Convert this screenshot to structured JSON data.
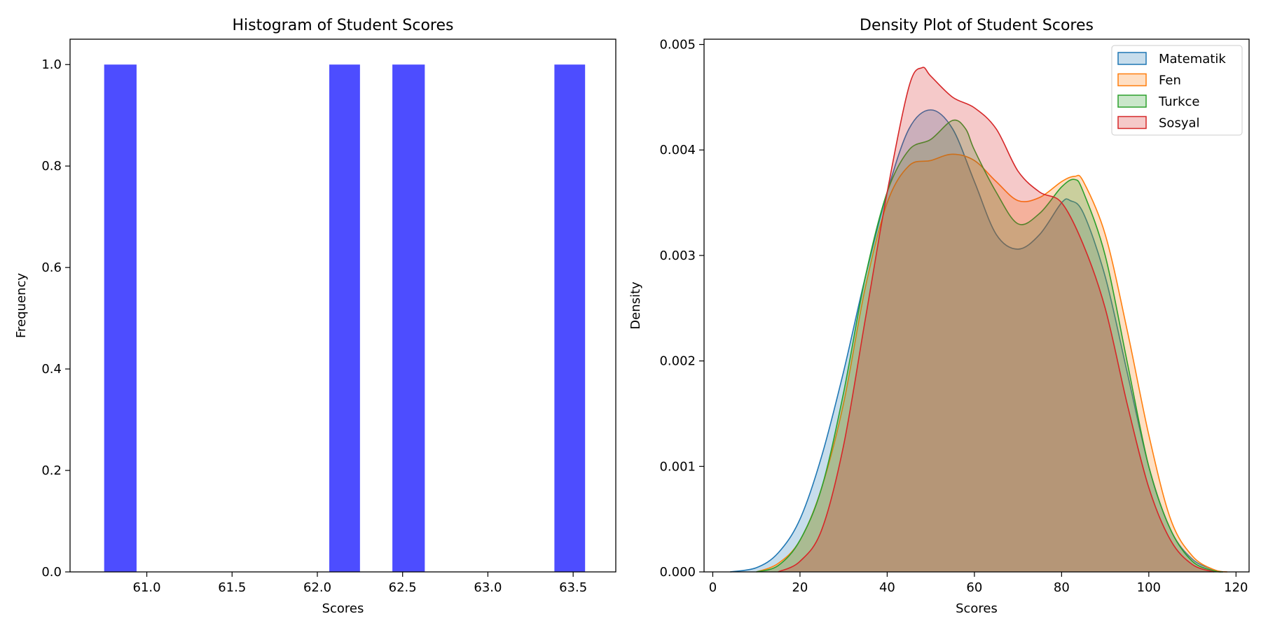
{
  "chart_data": [
    {
      "type": "bar",
      "title": "Histogram of Student Scores",
      "xlabel": "Scores",
      "ylabel": "Frequency",
      "xlim": [
        60.55,
        63.75
      ],
      "ylim": [
        0,
        1.05
      ],
      "xticks": [
        "61.0",
        "61.5",
        "62.0",
        "62.5",
        "63.0",
        "63.5"
      ],
      "yticks": [
        "0.0",
        "0.2",
        "0.4",
        "0.6",
        "0.8",
        "1.0"
      ],
      "bar_color": "#4d4dff",
      "bins": [
        {
          "x0": 60.75,
          "x1": 60.94,
          "value": 1
        },
        {
          "x0": 62.07,
          "x1": 62.25,
          "value": 1
        },
        {
          "x0": 62.44,
          "x1": 62.63,
          "value": 1
        },
        {
          "x0": 63.39,
          "x1": 63.57,
          "value": 1
        }
      ]
    },
    {
      "type": "area",
      "title": "Density Plot of Student Scores",
      "xlabel": "Scores",
      "ylabel": "Density",
      "xlim": [
        -2,
        123
      ],
      "ylim": [
        0,
        0.00505
      ],
      "xticks": [
        "0",
        "20",
        "40",
        "60",
        "80",
        "100",
        "120"
      ],
      "yticks": [
        "0.000",
        "0.001",
        "0.002",
        "0.003",
        "0.004",
        "0.005"
      ],
      "legend_position": "top-right",
      "series": [
        {
          "name": "Matematik",
          "color": "#1f77b4",
          "points": [
            [
              4,
              0
            ],
            [
              10,
              4e-05
            ],
            [
              15,
              0.00018
            ],
            [
              20,
              0.0005
            ],
            [
              25,
              0.0011
            ],
            [
              30,
              0.0019
            ],
            [
              35,
              0.0028
            ],
            [
              40,
              0.0036
            ],
            [
              45,
              0.0042
            ],
            [
              50,
              0.00438
            ],
            [
              55,
              0.0042
            ],
            [
              60,
              0.0037
            ],
            [
              65,
              0.0032
            ],
            [
              70,
              0.00306
            ],
            [
              75,
              0.0032
            ],
            [
              80,
              0.0035
            ],
            [
              82,
              0.00352
            ],
            [
              85,
              0.0034
            ],
            [
              90,
              0.0028
            ],
            [
              95,
              0.0019
            ],
            [
              100,
              0.001
            ],
            [
              105,
              0.0004
            ],
            [
              110,
              0.00012
            ],
            [
              115,
              2e-05
            ],
            [
              117,
              0
            ]
          ]
        },
        {
          "name": "Fen",
          "color": "#ff7f0e",
          "points": [
            [
              10,
              0
            ],
            [
              15,
              8e-05
            ],
            [
              20,
              0.0003
            ],
            [
              25,
              0.0008
            ],
            [
              30,
              0.0016
            ],
            [
              35,
              0.0027
            ],
            [
              40,
              0.0035
            ],
            [
              45,
              0.00385
            ],
            [
              50,
              0.0039
            ],
            [
              55,
              0.00396
            ],
            [
              60,
              0.0039
            ],
            [
              65,
              0.0037
            ],
            [
              70,
              0.00352
            ],
            [
              75,
              0.00355
            ],
            [
              80,
              0.0037
            ],
            [
              83,
              0.00375
            ],
            [
              85,
              0.0037
            ],
            [
              90,
              0.0032
            ],
            [
              95,
              0.0023
            ],
            [
              100,
              0.0013
            ],
            [
              105,
              0.0005
            ],
            [
              110,
              0.00015
            ],
            [
              115,
              2e-05
            ],
            [
              118,
              0
            ]
          ]
        },
        {
          "name": "Turkce",
          "color": "#2ca02c",
          "points": [
            [
              10,
              0
            ],
            [
              15,
              6e-05
            ],
            [
              20,
              0.0003
            ],
            [
              25,
              0.0008
            ],
            [
              30,
              0.0017
            ],
            [
              35,
              0.0028
            ],
            [
              40,
              0.0036
            ],
            [
              45,
              0.004
            ],
            [
              50,
              0.0041
            ],
            [
              55,
              0.00428
            ],
            [
              58,
              0.0042
            ],
            [
              60,
              0.004
            ],
            [
              65,
              0.0036
            ],
            [
              70,
              0.0033
            ],
            [
              75,
              0.0034
            ],
            [
              80,
              0.00365
            ],
            [
              83,
              0.00372
            ],
            [
              85,
              0.0036
            ],
            [
              90,
              0.003
            ],
            [
              95,
              0.002
            ],
            [
              100,
              0.001
            ],
            [
              105,
              0.0004
            ],
            [
              110,
              0.0001
            ],
            [
              115,
              1e-05
            ],
            [
              117,
              0
            ]
          ]
        },
        {
          "name": "Sosyal",
          "color": "#d62728",
          "points": [
            [
              15,
              0
            ],
            [
              20,
              0.0001
            ],
            [
              25,
              0.0004
            ],
            [
              30,
              0.0012
            ],
            [
              35,
              0.0024
            ],
            [
              40,
              0.0036
            ],
            [
              45,
              0.0046
            ],
            [
              48,
              0.00478
            ],
            [
              50,
              0.0047
            ],
            [
              55,
              0.0045
            ],
            [
              60,
              0.0044
            ],
            [
              65,
              0.0042
            ],
            [
              70,
              0.0038
            ],
            [
              75,
              0.0036
            ],
            [
              80,
              0.0035
            ],
            [
              85,
              0.0031
            ],
            [
              90,
              0.0025
            ],
            [
              95,
              0.0016
            ],
            [
              100,
              0.0008
            ],
            [
              105,
              0.0003
            ],
            [
              110,
              7e-05
            ],
            [
              115,
              0
            ]
          ]
        }
      ]
    }
  ]
}
